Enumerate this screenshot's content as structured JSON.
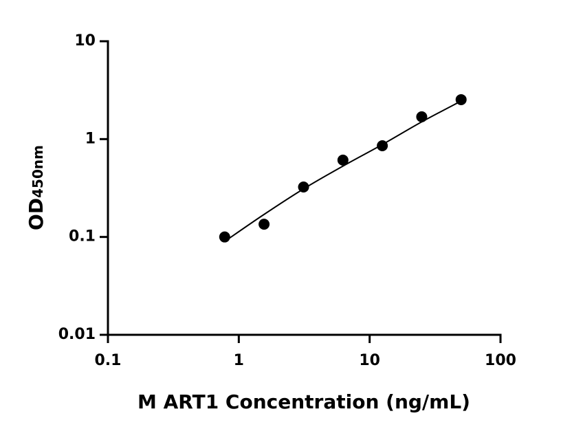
{
  "chart_data": {
    "type": "scatter",
    "x_label": "M ART1 Concentration (ng/mL)",
    "y_label": "OD",
    "y_label_sub": "450nm",
    "x": [
      0.78,
      1.56,
      3.125,
      6.25,
      12.5,
      25,
      50
    ],
    "series": [
      {
        "color": "#000000",
        "values": [
          0.1,
          0.135,
          0.324,
          0.61,
          0.855,
          1.69,
          2.53
        ]
      }
    ],
    "fit_curve": {
      "color": "#000000",
      "x": [
        0.78,
        1.56,
        3.125,
        6.25,
        12.5,
        25,
        50
      ],
      "y": [
        0.09,
        0.17,
        0.31,
        0.53,
        0.88,
        1.5,
        2.45
      ]
    },
    "xlim": [
      0.1,
      100
    ],
    "ylim": [
      0.01,
      10
    ],
    "xticks": [
      0.1,
      1,
      10,
      100
    ],
    "yticks": [
      0.01,
      0.1,
      1,
      10
    ],
    "xscale": "log",
    "yscale": "log",
    "grid": false
  }
}
